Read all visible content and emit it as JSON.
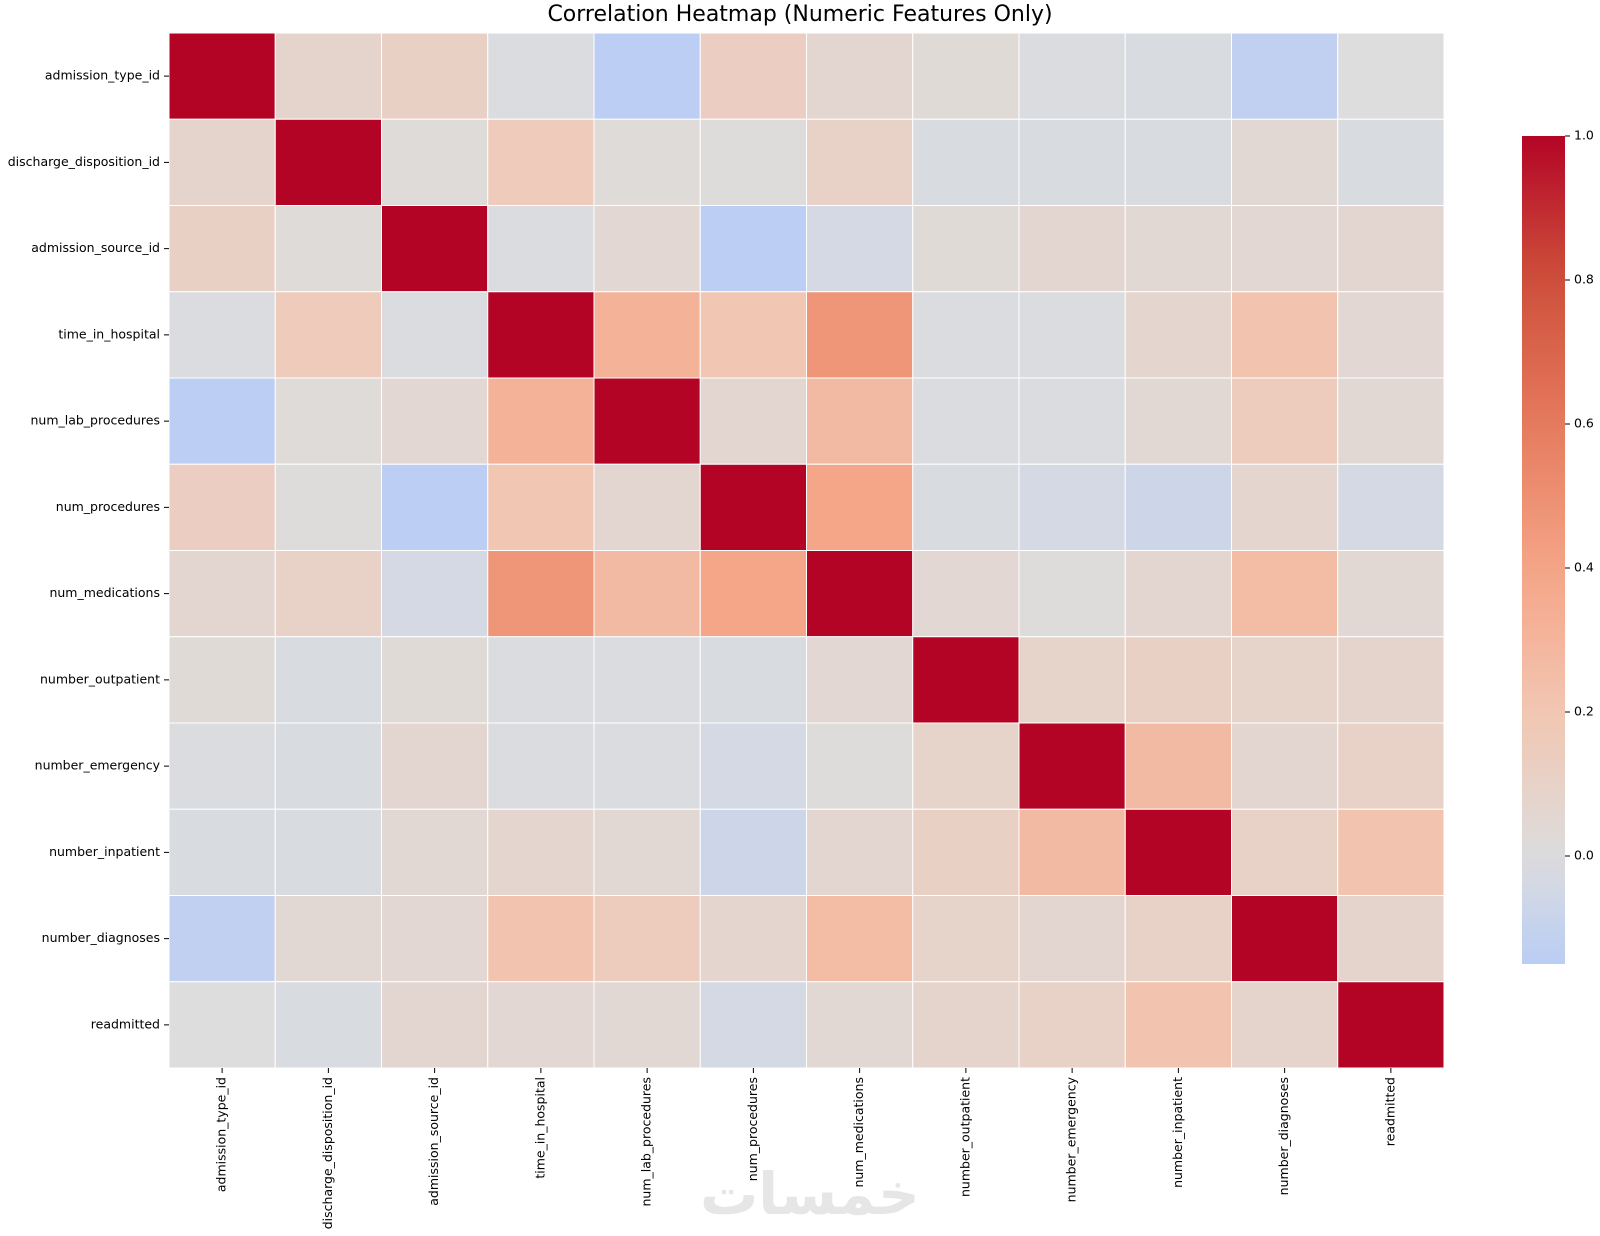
{
  "watermark": "خمسات",
  "chart_data": {
    "type": "heatmap",
    "title": "Correlation Heatmap (Numeric Features Only)",
    "xlabel": "",
    "ylabel": "",
    "colormap": "coolwarm",
    "center": 0,
    "color_range": [
      -0.15,
      1.0
    ],
    "colorbar_ticks": [
      0.0,
      0.2,
      0.4,
      0.6,
      0.8,
      1.0
    ],
    "colorbar_tick_labels": [
      "0.0",
      "0.2",
      "0.4",
      "0.6",
      "0.8",
      "1.0"
    ],
    "labels": [
      "admission_type_id",
      "discharge_disposition_id",
      "admission_source_id",
      "time_in_hospital",
      "num_lab_procedures",
      "num_procedures",
      "num_medications",
      "number_outpatient",
      "number_emergency",
      "number_inpatient",
      "number_diagnoses",
      "readmitted"
    ],
    "matrix": [
      [
        1.0,
        0.08,
        0.11,
        -0.01,
        -0.14,
        0.13,
        0.06,
        0.03,
        -0.01,
        -0.02,
        -0.12,
        0.0
      ],
      [
        0.08,
        1.0,
        0.02,
        0.16,
        0.02,
        0.01,
        0.1,
        -0.02,
        -0.02,
        -0.02,
        0.04,
        -0.02
      ],
      [
        0.11,
        0.02,
        1.0,
        -0.01,
        0.05,
        -0.14,
        -0.04,
        0.03,
        0.06,
        0.04,
        0.05,
        0.06
      ],
      [
        -0.01,
        0.16,
        -0.01,
        1.0,
        0.32,
        0.19,
        0.47,
        -0.01,
        -0.01,
        0.07,
        0.22,
        0.05
      ],
      [
        -0.14,
        0.02,
        0.05,
        0.32,
        1.0,
        0.06,
        0.27,
        -0.01,
        -0.01,
        0.04,
        0.15,
        0.04
      ],
      [
        0.13,
        0.01,
        -0.14,
        0.19,
        0.06,
        1.0,
        0.39,
        -0.02,
        -0.04,
        -0.07,
        0.07,
        -0.04
      ],
      [
        0.06,
        0.1,
        -0.04,
        0.47,
        0.27,
        0.39,
        1.0,
        0.05,
        0.01,
        0.06,
        0.26,
        0.04
      ],
      [
        0.03,
        -0.02,
        0.03,
        -0.01,
        -0.01,
        -0.02,
        0.05,
        1.0,
        0.09,
        0.11,
        0.09,
        0.08
      ],
      [
        -0.01,
        -0.02,
        0.06,
        -0.01,
        -0.01,
        -0.04,
        0.01,
        0.09,
        1.0,
        0.27,
        0.06,
        0.1
      ],
      [
        -0.02,
        -0.02,
        0.04,
        0.07,
        0.04,
        -0.07,
        0.06,
        0.11,
        0.27,
        1.0,
        0.1,
        0.22
      ],
      [
        -0.12,
        0.04,
        0.05,
        0.22,
        0.15,
        0.07,
        0.26,
        0.09,
        0.06,
        0.1,
        1.0,
        0.08
      ],
      [
        0.0,
        -0.02,
        0.06,
        0.05,
        0.04,
        -0.04,
        0.04,
        0.08,
        0.1,
        0.22,
        0.08,
        1.0
      ]
    ]
  }
}
